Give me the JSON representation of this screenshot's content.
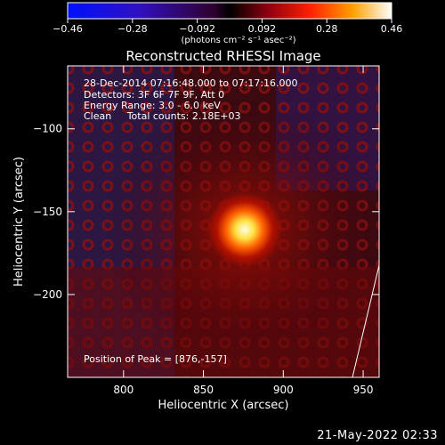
{
  "colorbar": {
    "ticks": [
      "−0.46",
      "−0.28",
      "−0.092",
      "0.092",
      "0.28",
      "0.46"
    ],
    "unit_label": "(photons cm⁻² s⁻¹ asec⁻²)",
    "colors": {
      "neg_end": "#0000ff",
      "mid": "#000000",
      "pos_mid": "#ff3000",
      "pos_end": "#ffffff"
    }
  },
  "chart_data": {
    "type": "heatmap",
    "title": "Reconstructed RHESSI Image",
    "xlabel": "Heliocentric X (arcsec)",
    "ylabel": "Heliocentric Y (arcsec)",
    "x_ticks": [
      800,
      850,
      900,
      950
    ],
    "y_ticks": [
      -100,
      -150,
      -200
    ],
    "xlim": [
      765,
      960
    ],
    "ylim": [
      -250,
      -62
    ],
    "peak": {
      "x": 876,
      "y": -157
    },
    "colorscale_range": [
      -0.46,
      0.46
    ],
    "grid": false
  },
  "info": {
    "line1": "28-Dec-2014 07:16:48.000 to 07:17:16.000",
    "line2": "Detectors: 3F 6F 7F 9F, Att 0",
    "line3": "Energy Range: 3.0 - 6.0 keV",
    "line4": "Clean     Total counts: 2.18E+03",
    "peak_text": "Position of Peak = [876,-157]"
  },
  "timestamp": "21-May-2022 02:33"
}
